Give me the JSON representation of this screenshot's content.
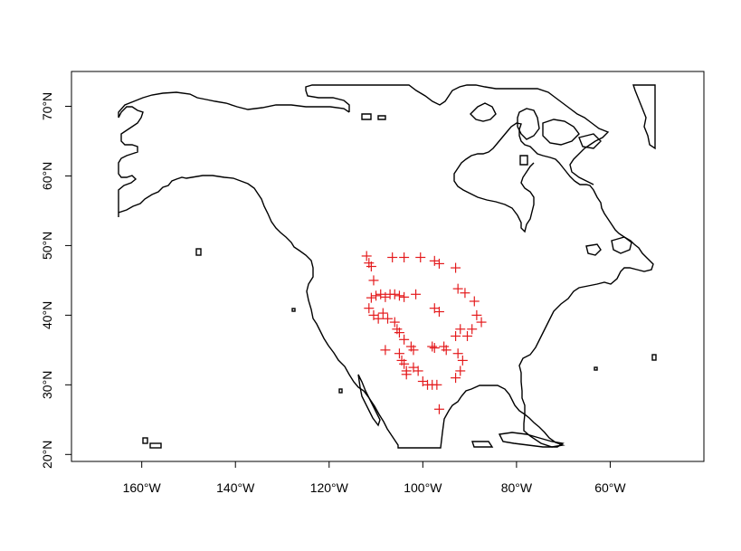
{
  "chart_data": {
    "type": "scatter",
    "title": "",
    "xlabel": "",
    "ylabel": "",
    "xlim": [
      -175,
      -40
    ],
    "ylim": [
      19,
      75
    ],
    "xticks": [
      -160,
      -140,
      -120,
      -100,
      -80,
      -60
    ],
    "xtick_labels": [
      "160°W",
      "140°W",
      "120°W",
      "100°W",
      "80°W",
      "60°W"
    ],
    "yticks": [
      20,
      30,
      40,
      50,
      60,
      70
    ],
    "ytick_labels": [
      "20°N",
      "30°N",
      "40°N",
      "50°N",
      "60°N",
      "70°N"
    ],
    "grid": false,
    "basemap": "North America coastline outline",
    "marker": "+",
    "colors": {
      "points": "#e41a1c",
      "coastline": "#000000",
      "frame": "#000000"
    },
    "series": [
      {
        "x": [
          -112.0,
          -111.5,
          -111.0,
          -110.5,
          -106.5,
          -104.0,
          -100.5,
          -97.5,
          -96.5,
          -93.0,
          -111.0,
          -110.0,
          -109.0,
          -108.0,
          -107.0,
          -106.0,
          -105.0,
          -104.0,
          -101.5,
          -97.5,
          -96.5,
          -92.5,
          -91.0,
          -89.0,
          -88.5,
          -87.5,
          -111.5,
          -110.5,
          -109.5,
          -108.5,
          -107.5,
          -106.0,
          -105.5,
          -105.0,
          -104.0,
          -102.5,
          -102.0,
          -98.0,
          -97.5,
          -95.5,
          -95.0,
          -93.0,
          -92.0,
          -90.5,
          -89.5,
          -108.0,
          -105.0,
          -104.0,
          -103.5,
          -102.0,
          -101.0,
          -100.0,
          -99.0,
          -98.0,
          -97.0,
          -93.0,
          -92.0,
          -91.5,
          -104.5,
          -103.5,
          -96.5,
          -92.5
        ],
        "y": [
          48.5,
          47.5,
          47.0,
          45.0,
          48.3,
          48.3,
          48.3,
          47.8,
          47.4,
          46.8,
          42.5,
          42.8,
          43.0,
          42.6,
          43.0,
          43.0,
          42.8,
          42.6,
          43.0,
          41.0,
          40.5,
          43.8,
          43.2,
          42.0,
          40.0,
          39.0,
          41.0,
          40.0,
          39.5,
          40.3,
          39.5,
          39.0,
          38.0,
          37.5,
          36.5,
          35.5,
          35.0,
          35.5,
          35.3,
          35.5,
          35.0,
          37.0,
          38.0,
          37.0,
          38.0,
          35.0,
          34.5,
          33.0,
          32.0,
          32.5,
          32.0,
          30.5,
          30.0,
          30.0,
          30.0,
          31.0,
          32.0,
          33.5,
          33.5,
          31.5,
          26.5,
          34.5
        ]
      }
    ]
  }
}
